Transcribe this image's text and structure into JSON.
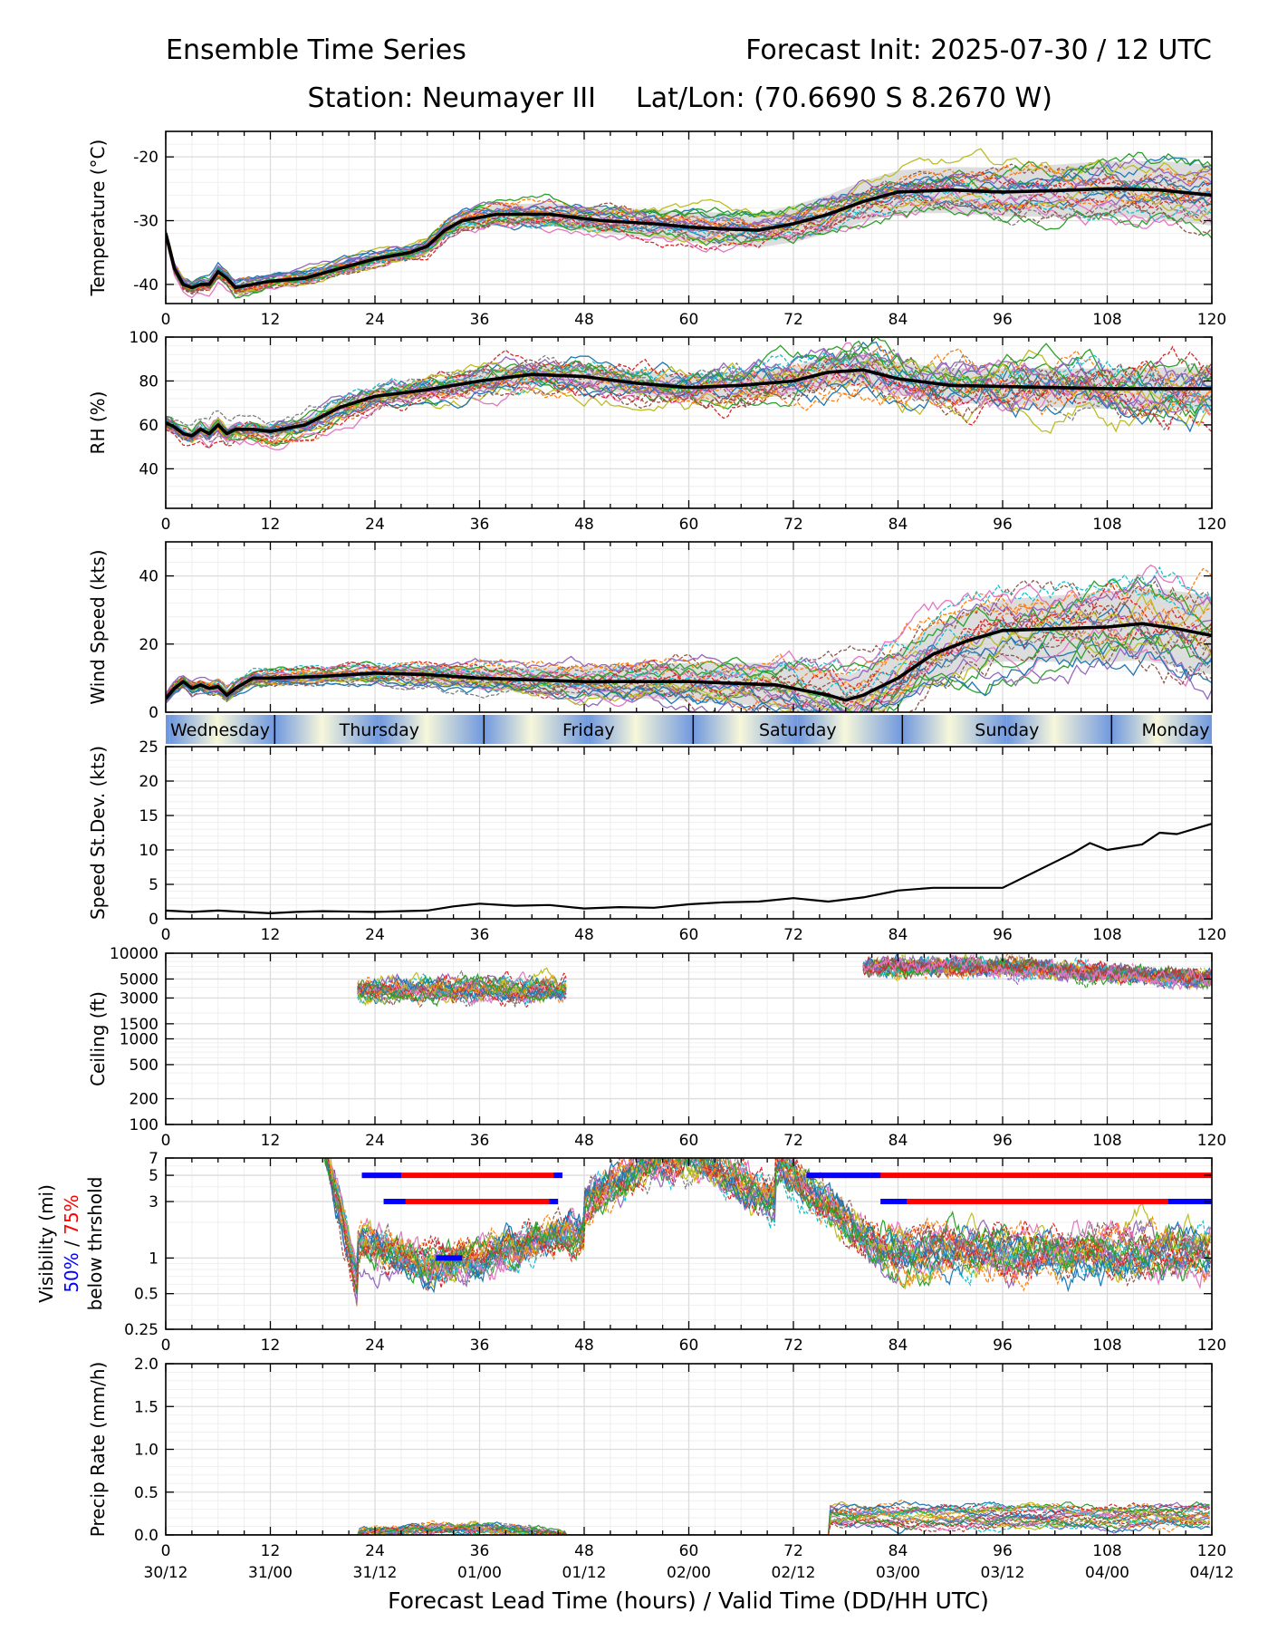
{
  "header": {
    "title_left": "Ensemble Time Series",
    "title_right": "Forecast Init: 2025-07-30 / 12 UTC",
    "station": "Station: Neumayer III",
    "latlon": "Lat/Lon: (70.6690 S 8.2670 W)"
  },
  "xaxis": {
    "label": "Forecast Lead Time (hours) / Valid Time (DD/HH UTC)",
    "ticks": [
      0,
      12,
      24,
      36,
      48,
      60,
      72,
      84,
      96,
      108,
      120
    ],
    "tick_labels": [
      "0",
      "12",
      "24",
      "36",
      "48",
      "60",
      "72",
      "84",
      "96",
      "108",
      "120"
    ],
    "valid_labels": [
      "30/12",
      "31/00",
      "31/12",
      "01/00",
      "01/12",
      "02/00",
      "02/12",
      "03/00",
      "03/12",
      "04/00",
      "04/12"
    ],
    "range": [
      0,
      120
    ]
  },
  "day_band": {
    "labels": [
      "Wednesday",
      "Thursday",
      "Friday",
      "Saturday",
      "Sunday",
      "Monday"
    ],
    "boundaries_hours": [
      12.5,
      36.5,
      60.5,
      84.5,
      108.5
    ],
    "colors": {
      "day": "#f7f7da",
      "night": "#6f98de"
    }
  },
  "colors": {
    "mean": "#000000",
    "spread": "#d4d4d4",
    "members": [
      "#1f77b4",
      "#ff7f0e",
      "#2ca02c",
      "#d62728",
      "#9467bd",
      "#8c564b",
      "#e377c2",
      "#7f7f7f",
      "#bcbd22",
      "#17becf"
    ],
    "threshold_50": "#0000ff",
    "threshold_75": "#ff0000"
  },
  "chart_data": [
    {
      "id": "temperature",
      "type": "line",
      "ylabel": "Temperature (°C)",
      "ylim": [
        -43,
        -16
      ],
      "yticks": [
        -20,
        -30,
        -40
      ],
      "grid": true,
      "series": [
        {
          "name": "mean",
          "x": [
            0,
            1,
            2,
            3,
            4,
            5,
            6,
            7,
            8,
            10,
            12,
            16,
            20,
            24,
            28,
            30,
            32,
            34,
            38,
            44,
            50,
            56,
            60,
            64,
            68,
            72,
            76,
            80,
            84,
            90,
            96,
            102,
            108,
            114,
            120
          ],
          "y": [
            -32,
            -37.5,
            -40,
            -40.5,
            -40,
            -40,
            -38,
            -39,
            -40.5,
            -40,
            -39.5,
            -39,
            -37.5,
            -36,
            -35,
            -34,
            -31.5,
            -30,
            -29,
            -29,
            -30,
            -30.5,
            -31,
            -31.3,
            -31.5,
            -30.5,
            -29,
            -27,
            -25.5,
            -25.2,
            -25.5,
            -25.3,
            -25.0,
            -25.2,
            -26.0
          ]
        }
      ]
    },
    {
      "id": "rh",
      "type": "line",
      "ylabel": "RH (%)",
      "ylim": [
        22,
        100
      ],
      "yticks": [
        40,
        60,
        80,
        100
      ],
      "grid": true,
      "series": [
        {
          "name": "mean",
          "x": [
            0,
            1,
            2,
            3,
            4,
            5,
            6,
            7,
            8,
            10,
            12,
            16,
            20,
            24,
            28,
            30,
            36,
            42,
            48,
            54,
            60,
            66,
            72,
            76,
            80,
            84,
            90,
            96,
            102,
            108,
            114,
            120
          ],
          "y": [
            61,
            59,
            56,
            55,
            58,
            56,
            60,
            56,
            58,
            58,
            57,
            60,
            68,
            73,
            75,
            76,
            80,
            83,
            82,
            79,
            77,
            78,
            80,
            84,
            85,
            81,
            78,
            77.5,
            77,
            76.5,
            76.5,
            76.5
          ]
        }
      ]
    },
    {
      "id": "wind_speed",
      "type": "line",
      "ylabel": "Wind Speed (kts)",
      "ylim": [
        0,
        50
      ],
      "yticks": [
        0,
        20,
        40
      ],
      "grid": true,
      "series": [
        {
          "name": "mean",
          "x": [
            0,
            1,
            2,
            3,
            4,
            5,
            6,
            7,
            8,
            10,
            12,
            18,
            24,
            30,
            36,
            48,
            60,
            70,
            76,
            78,
            80,
            84,
            88,
            92,
            96,
            102,
            108,
            112,
            116,
            120
          ],
          "y": [
            4,
            7,
            9,
            7,
            8,
            7,
            7.5,
            5,
            7,
            10,
            10,
            10.5,
            11.5,
            11,
            10,
            9,
            9,
            8,
            5,
            3.5,
            5,
            10,
            17,
            21,
            24,
            24.5,
            25,
            26,
            24.5,
            22.5
          ]
        }
      ]
    },
    {
      "id": "speed_stdev",
      "type": "line",
      "ylabel": "Speed St.Dev. (kts)",
      "ylim": [
        0,
        25
      ],
      "yticks": [
        0,
        5,
        10,
        15,
        20,
        25
      ],
      "grid": true,
      "series": [
        {
          "name": "mean",
          "x": [
            0,
            3,
            6,
            9,
            12,
            15,
            18,
            24,
            30,
            33,
            36,
            40,
            44,
            48,
            52,
            56,
            60,
            64,
            68,
            72,
            76,
            80,
            84,
            88,
            92,
            96,
            100,
            104,
            106,
            108,
            112,
            114,
            116,
            120
          ],
          "y": [
            1.2,
            1.0,
            1.2,
            1.0,
            0.8,
            1.0,
            1.1,
            1.0,
            1.2,
            1.8,
            2.2,
            1.9,
            2.0,
            1.5,
            1.7,
            1.6,
            2.1,
            2.4,
            2.5,
            3.0,
            2.5,
            3.1,
            4.1,
            4.5,
            4.5,
            4.5,
            7.0,
            9.5,
            11.0,
            10.0,
            10.8,
            12.5,
            12.3,
            13.8
          ]
        }
      ]
    },
    {
      "id": "ceiling",
      "type": "line",
      "ylabel": "Ceiling (ft)",
      "yscale": "log",
      "ylim": [
        100,
        10000
      ],
      "yticks": [
        100,
        200,
        500,
        1000,
        1500,
        3000,
        5000,
        10000
      ],
      "ytick_labels": [
        "100",
        "200",
        "500",
        "1000",
        "1500",
        "3000",
        "5000",
        "10000"
      ],
      "grid": true
    },
    {
      "id": "visibility",
      "type": "line",
      "ylabel": "Visibility (mi)",
      "ylabel_50": "50%",
      "ylabel_sep": " / ",
      "ylabel_75": "75%",
      "ylabel_2": "below thrshold",
      "yscale": "log",
      "ylim": [
        0.25,
        7
      ],
      "yticks": [
        0.25,
        0.5,
        1,
        3,
        5,
        7
      ],
      "ytick_labels": [
        "0.25",
        "0.5",
        "1",
        "3",
        "5",
        "7"
      ],
      "grid": true,
      "threshold_bars": {
        "p75": [
          {
            "level": 5,
            "x0": 22.5,
            "x1": 45.5
          },
          {
            "level": 3,
            "x0": 25,
            "x1": 45
          },
          {
            "level": 5,
            "x0": 73.5,
            "x1": 120
          },
          {
            "level": 3,
            "x0": 82,
            "x1": 120
          }
        ],
        "p50": [
          {
            "level": 5,
            "x0": 22.5,
            "x1": 27
          },
          {
            "level": 5,
            "x0": 44.5,
            "x1": 45.5
          },
          {
            "level": 3,
            "x0": 25,
            "x1": 27.5
          },
          {
            "level": 3,
            "x0": 44,
            "x1": 45
          },
          {
            "level": 1,
            "x0": 31,
            "x1": 34
          },
          {
            "level": 5,
            "x0": 73.5,
            "x1": 82
          },
          {
            "level": 3,
            "x0": 82,
            "x1": 85
          },
          {
            "level": 3,
            "x0": 115,
            "x1": 120
          }
        ]
      }
    },
    {
      "id": "precip",
      "type": "line",
      "ylabel": "Precip Rate (mm/h)",
      "ylim": [
        0,
        2.0
      ],
      "yticks": [
        0.0,
        0.5,
        1.0,
        1.5,
        2.0
      ],
      "ytick_labels": [
        "0.0",
        "0.5",
        "1.0",
        "1.5",
        "2.0"
      ],
      "grid": true
    }
  ]
}
